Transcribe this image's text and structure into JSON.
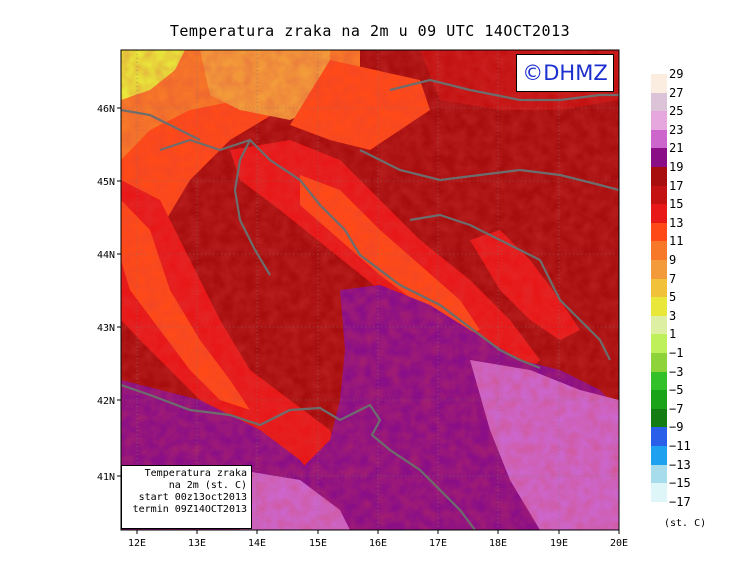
{
  "title": "Temperatura zraka na 2m u 09 UTC 14OCT2013",
  "brand": "©DHMZ",
  "info": {
    "line1": "Temperatura zraka",
    "line2": "na 2m (st. C)",
    "line3": "start 00z13oct2013",
    "line4": "termin 09Z14OCT2013"
  },
  "axes": {
    "x_ticks": [
      "12E",
      "13E",
      "14E",
      "15E",
      "16E",
      "17E",
      "18E",
      "19E",
      "20E"
    ],
    "y_ticks": [
      "41N",
      "42N",
      "43N",
      "44N",
      "45N",
      "46N"
    ]
  },
  "legend": {
    "units": "(st. C)",
    "labels": [
      "29",
      "27",
      "25",
      "23",
      "21",
      "19",
      "17",
      "15",
      "13",
      "11",
      "9",
      "7",
      "5",
      "3",
      "1",
      "−1",
      "−3",
      "−5",
      "−7",
      "−9",
      "−11",
      "−13",
      "−15",
      "−17"
    ],
    "colors": [
      "#fbeee0",
      "#dcc3d8",
      "#e5a7dd",
      "#cc66cc",
      "#8a0f87",
      "#a80e0e",
      "#c41212",
      "#e81818",
      "#ff4a18",
      "#f77828",
      "#f39a3a",
      "#f2c13a",
      "#e9e83a",
      "#dcefa3",
      "#bdf05b",
      "#8ed33a",
      "#33c12a",
      "#18a318",
      "#137c13",
      "#2a5fe9",
      "#1ea1ee",
      "#a6dcec",
      "#dff6f8"
    ]
  }
}
